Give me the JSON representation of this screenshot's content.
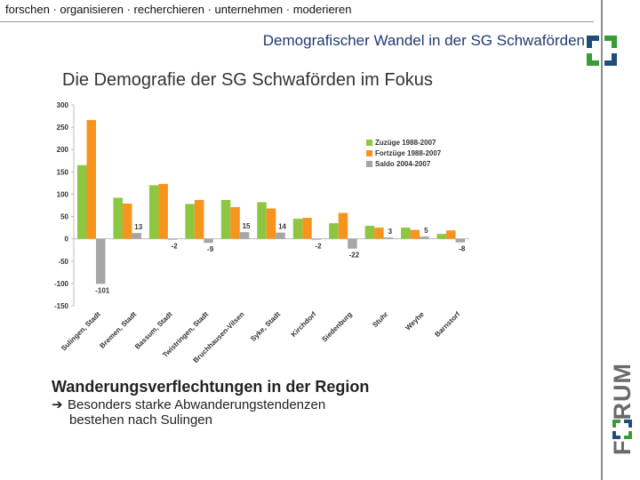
{
  "header": {
    "tagline": "forschen · organisieren · recherchieren · unternehmen · moderieren",
    "subtitle": "Demografischer Wandel in der SG Schwaförden"
  },
  "slide": {
    "title": "Die Demografie der SG Schwaförden im Fokus"
  },
  "section": {
    "title": "Wanderungsverflechtungen in der Region",
    "bullet_line1": "Besonders starke Abwanderungstendenzen",
    "bullet_line2": "bestehen nach Sulingen"
  },
  "logo": {
    "text_before": "F",
    "text_after": "RUM"
  },
  "colors": {
    "zuzuege": "#8dc63f",
    "fortzuege": "#f7941d",
    "saldo": "#a6a6a6",
    "brand_blue": "#1f4e79",
    "brand_green": "#3a9b3a"
  },
  "chart_data": {
    "type": "bar",
    "title": "",
    "xlabel": "",
    "ylabel": "",
    "ylim": [
      -150,
      300
    ],
    "yticks": [
      300,
      250,
      200,
      150,
      100,
      50,
      0,
      -50,
      -100,
      -150
    ],
    "legend_position": "top-right",
    "categories": [
      "Sulingen, Stadt",
      "Bremen, Stadt",
      "Bassum, Stadt",
      "Twistringen, Stadt",
      "Bruchhausen-Vilsen",
      "Syke, Stadt",
      "Kirchdorf",
      "Siedenburg",
      "Stuhr",
      "Weyhe",
      "Barnstorf"
    ],
    "series": [
      {
        "name": "Zuzüge 1988-2007",
        "values": [
          165,
          92,
          120,
          78,
          87,
          82,
          45,
          35,
          29,
          25,
          11
        ]
      },
      {
        "name": "Fortzüge 1988-2007",
        "values": [
          266,
          79,
          123,
          87,
          71,
          68,
          47,
          58,
          25,
          20,
          19
        ]
      },
      {
        "name": "Saldo 2004-2007",
        "values": [
          -101,
          13,
          -2,
          -9,
          15,
          14,
          -2,
          -22,
          3,
          5,
          -8
        ]
      }
    ],
    "saldo_labels": [
      "-101",
      "13",
      "-2",
      "-9",
      "15",
      "14",
      "-2",
      "-22",
      "3",
      "5",
      "-8"
    ]
  }
}
